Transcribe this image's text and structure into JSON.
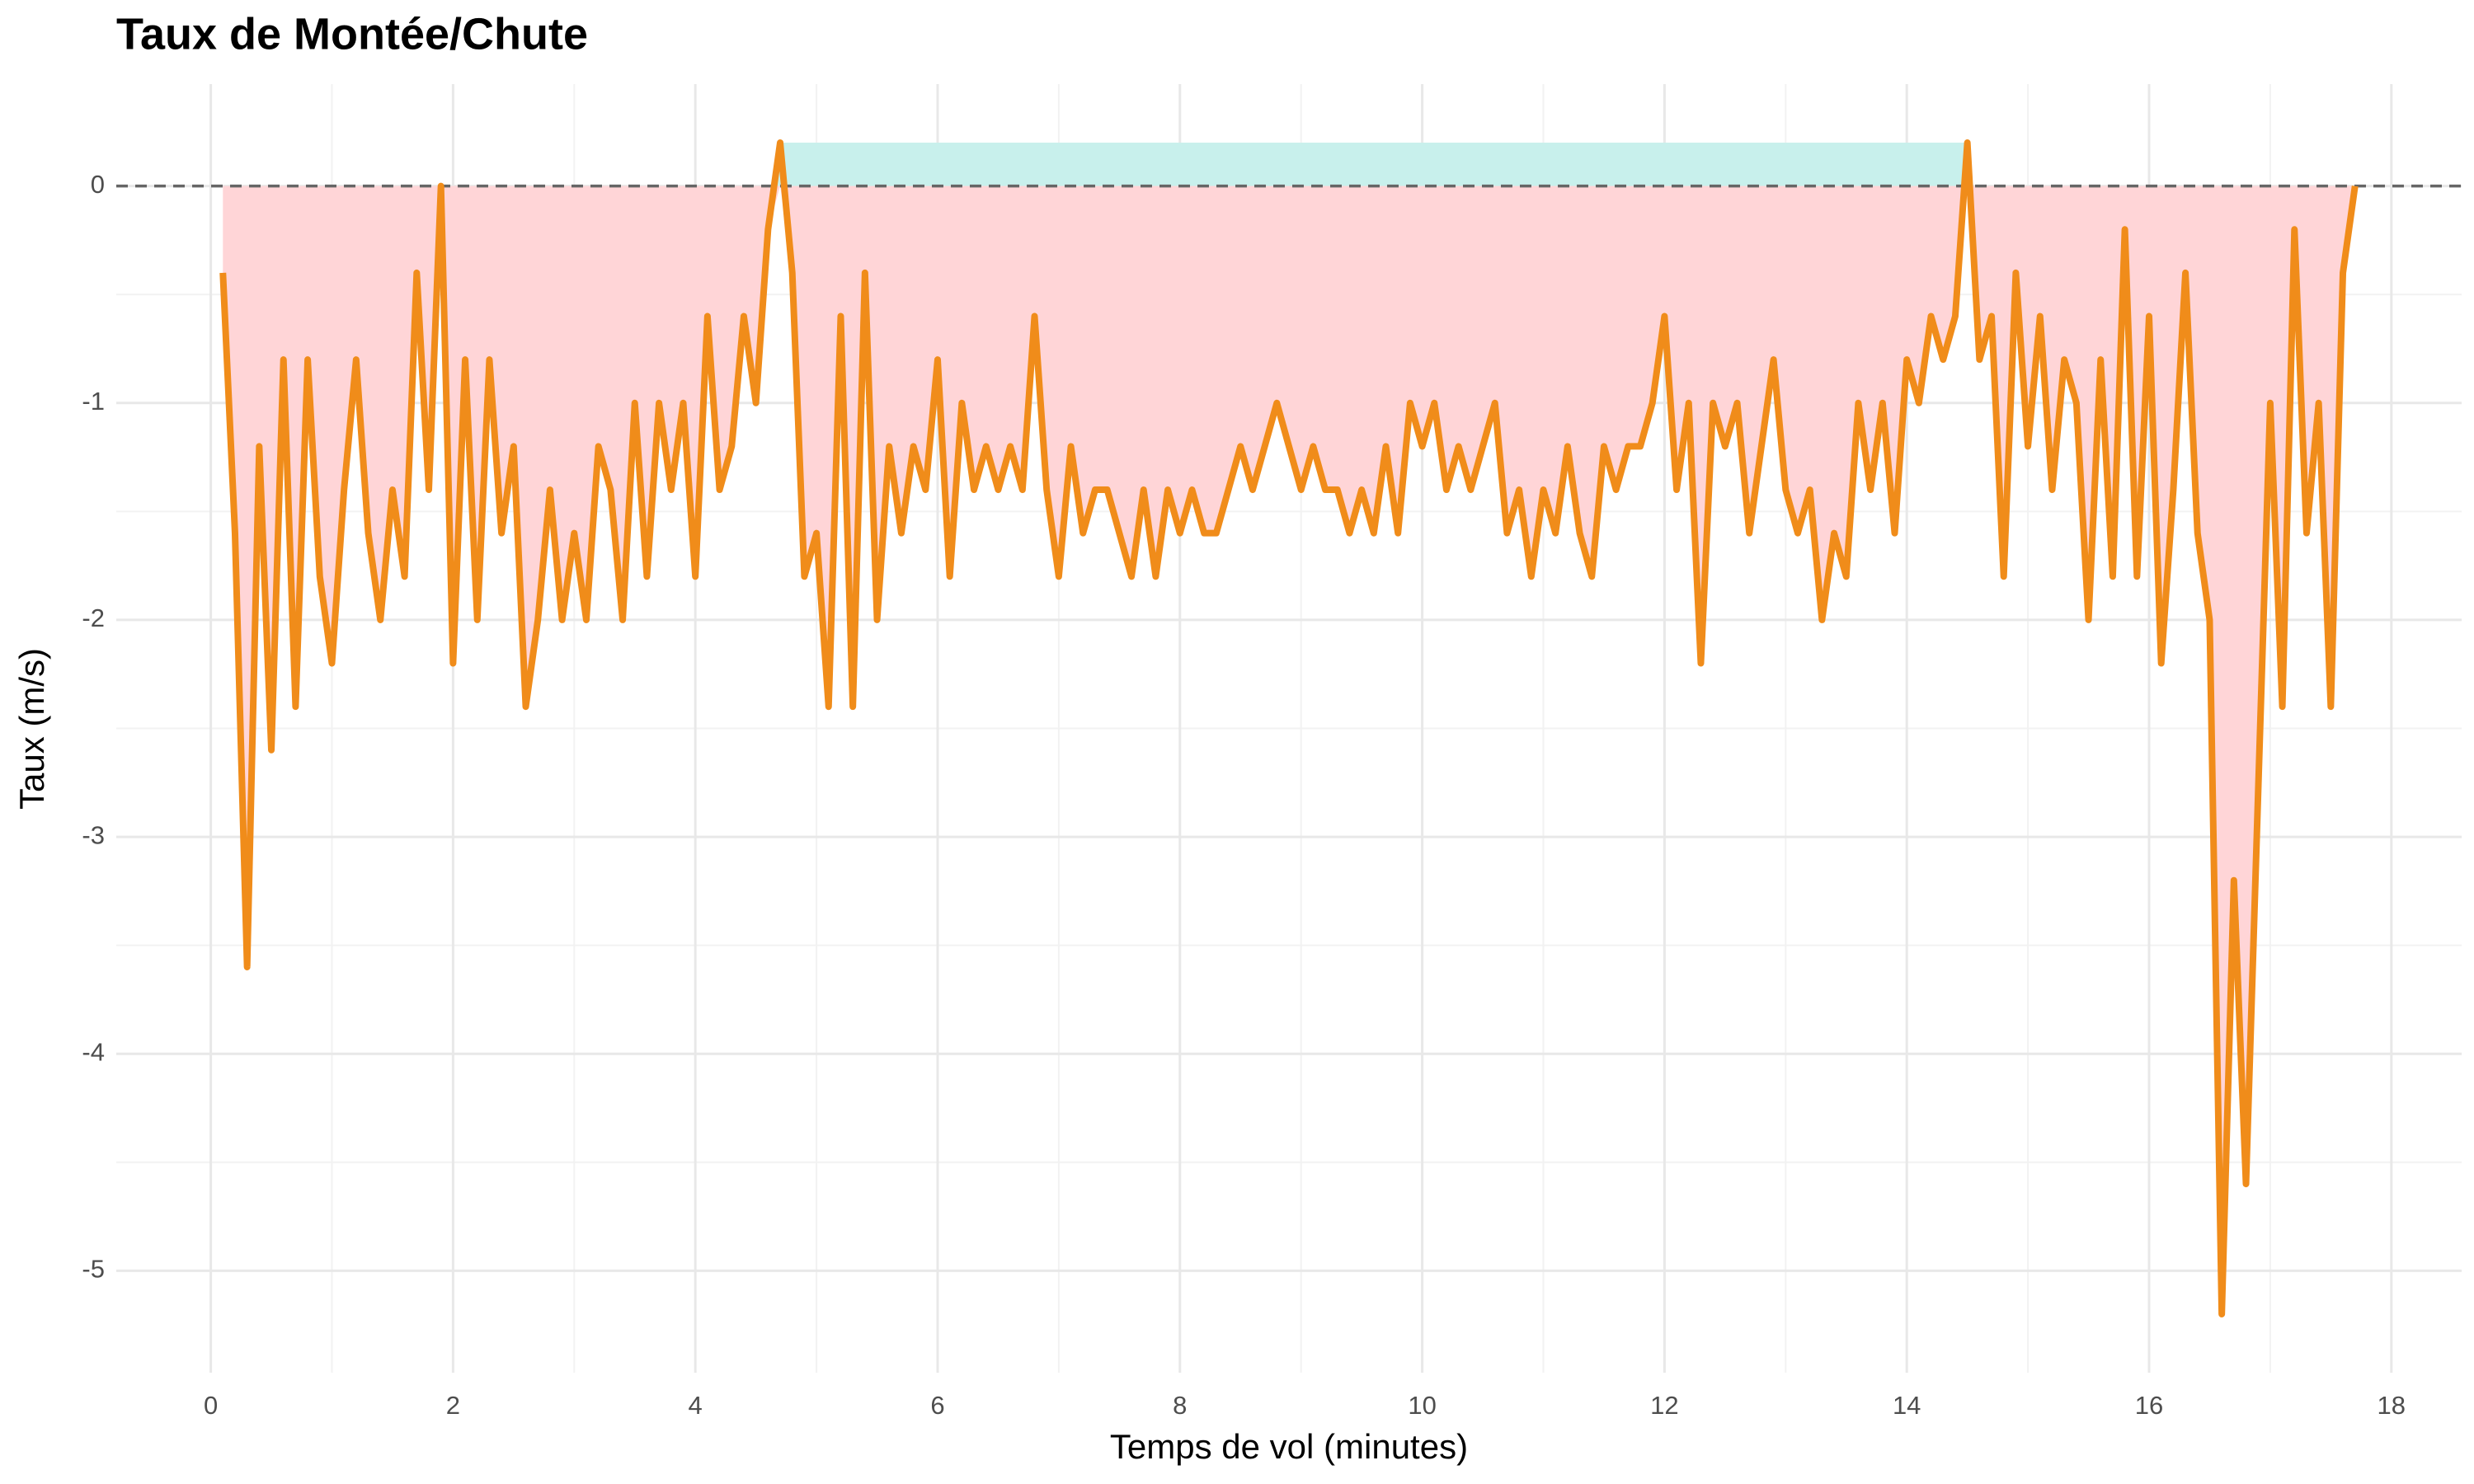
{
  "chart_data": {
    "type": "line",
    "title": "Taux de Montée/Chute",
    "x_label": "Temps de vol (minutes)",
    "y_label": "Taux (m/s)",
    "x": [
      0.1,
      0.2,
      0.3,
      0.4,
      0.5,
      0.6,
      0.7,
      0.8,
      0.9,
      1.0,
      1.1,
      1.2,
      1.3,
      1.4,
      1.5,
      1.6,
      1.7,
      1.8,
      1.9,
      2.0,
      2.1,
      2.2,
      2.3,
      2.4,
      2.5,
      2.6,
      2.7,
      2.8,
      2.9,
      3.0,
      3.1,
      3.2,
      3.3,
      3.4,
      3.5,
      3.6,
      3.7,
      3.8,
      3.9,
      4.0,
      4.1,
      4.2,
      4.3,
      4.4,
      4.5,
      4.6,
      4.7,
      4.8,
      4.9,
      5.0,
      5.1,
      5.2,
      5.3,
      5.4,
      5.5,
      5.6,
      5.7,
      5.8,
      5.9,
      6.0,
      6.1,
      6.2,
      6.3,
      6.4,
      6.5,
      6.6,
      6.7,
      6.8,
      6.9,
      7.0,
      7.1,
      7.2,
      7.3,
      7.4,
      7.5,
      7.6,
      7.7,
      7.8,
      7.9,
      8.0,
      8.1,
      8.2,
      8.3,
      8.4,
      8.5,
      8.6,
      8.7,
      8.8,
      8.9,
      9.0,
      9.1,
      9.2,
      9.3,
      9.4,
      9.5,
      9.6,
      9.7,
      9.8,
      9.9,
      10.0,
      10.1,
      10.2,
      10.3,
      10.4,
      10.5,
      10.6,
      10.7,
      10.8,
      10.9,
      11.0,
      11.1,
      11.2,
      11.3,
      11.4,
      11.5,
      11.6,
      11.7,
      11.8,
      11.9,
      12.0,
      12.1,
      12.2,
      12.3,
      12.4,
      12.5,
      12.6,
      12.7,
      12.8,
      12.9,
      13.0,
      13.1,
      13.2,
      13.3,
      13.4,
      13.5,
      13.6,
      13.7,
      13.8,
      13.9,
      14.0,
      14.1,
      14.2,
      14.3,
      14.4,
      14.5,
      14.6,
      14.7,
      14.8,
      14.9,
      15.0,
      15.1,
      15.2,
      15.3,
      15.4,
      15.5,
      15.6,
      15.7,
      15.8,
      15.9,
      16.0,
      16.1,
      16.2,
      16.3,
      16.4,
      16.5,
      16.6,
      16.7,
      16.8,
      16.9,
      17.0,
      17.1,
      17.2,
      17.3,
      17.4,
      17.5,
      17.6,
      17.7
    ],
    "values": [
      -0.4,
      -1.6,
      -3.6,
      -1.2,
      -2.6,
      -0.8,
      -2.4,
      -0.8,
      -1.8,
      -2.2,
      -1.4,
      -0.8,
      -1.6,
      -2.0,
      -1.4,
      -1.8,
      -0.4,
      -1.4,
      0.0,
      -2.2,
      -0.8,
      -2.0,
      -0.8,
      -1.6,
      -1.2,
      -2.4,
      -2.0,
      -1.4,
      -2.0,
      -1.6,
      -2.0,
      -1.2,
      -1.4,
      -2.0,
      -1.0,
      -1.8,
      -1.0,
      -1.4,
      -1.0,
      -1.8,
      -0.6,
      -1.4,
      -1.2,
      -0.6,
      -1.0,
      -0.2,
      0.2,
      -0.4,
      -1.8,
      -1.6,
      -2.4,
      -0.6,
      -2.4,
      -0.4,
      -2.0,
      -1.2,
      -1.6,
      -1.2,
      -1.4,
      -0.8,
      -1.8,
      -1.0,
      -1.4,
      -1.2,
      -1.4,
      -1.2,
      -1.4,
      -0.6,
      -1.4,
      -1.8,
      -1.2,
      -1.6,
      -1.4,
      -1.4,
      -1.6,
      -1.8,
      -1.4,
      -1.8,
      -1.4,
      -1.6,
      -1.4,
      -1.6,
      -1.6,
      -1.4,
      -1.2,
      -1.4,
      -1.2,
      -1.0,
      -1.2,
      -1.4,
      -1.2,
      -1.4,
      -1.4,
      -1.6,
      -1.4,
      -1.6,
      -1.2,
      -1.6,
      -1.0,
      -1.2,
      -1.0,
      -1.4,
      -1.2,
      -1.4,
      -1.2,
      -1.0,
      -1.6,
      -1.4,
      -1.8,
      -1.4,
      -1.6,
      -1.2,
      -1.6,
      -1.8,
      -1.2,
      -1.4,
      -1.2,
      -1.2,
      -1.0,
      -0.6,
      -1.4,
      -1.0,
      -2.2,
      -1.0,
      -1.2,
      -1.0,
      -1.6,
      -1.2,
      -0.8,
      -1.4,
      -1.6,
      -1.4,
      -2.0,
      -1.6,
      -1.8,
      -1.0,
      -1.4,
      -1.0,
      -1.6,
      -0.8,
      -1.0,
      -0.6,
      -0.8,
      -0.6,
      0.2,
      -0.8,
      -0.6,
      -1.8,
      -0.4,
      -1.2,
      -0.6,
      -1.4,
      -0.8,
      -1.0,
      -2.0,
      -0.8,
      -1.8,
      -0.2,
      -1.8,
      -0.6,
      -2.2,
      -1.4,
      -0.4,
      -1.6,
      -2.0,
      -5.2,
      -3.2,
      -4.6,
      -2.8,
      -1.0,
      -2.4,
      -0.2,
      -1.6,
      -1.0,
      -2.4,
      -0.4,
      0.0
    ],
    "color": "#f08c1a",
    "fill_below_color": "#ffd5d7",
    "highlight": {
      "x": [
        4.68,
        14.5
      ],
      "ylim": [
        0,
        0.2
      ],
      "color": "#c8f0ec"
    },
    "reference_line": 0,
    "xlim": [
      -0.78,
      18.58
    ],
    "ylim": [
      -5.47,
      0.47
    ],
    "xticks": [
      0,
      2,
      4,
      6,
      8,
      10,
      12,
      14,
      16,
      18
    ],
    "yticks": [
      -5,
      -4,
      -3,
      -2,
      -1,
      0
    ],
    "x_minor_ticks": [
      1,
      3,
      5,
      7,
      9,
      11,
      13,
      15,
      17
    ],
    "y_minor_ticks": [
      -4.5,
      -3.5,
      -2.5,
      -1.5,
      -0.5
    ],
    "grid": true
  }
}
